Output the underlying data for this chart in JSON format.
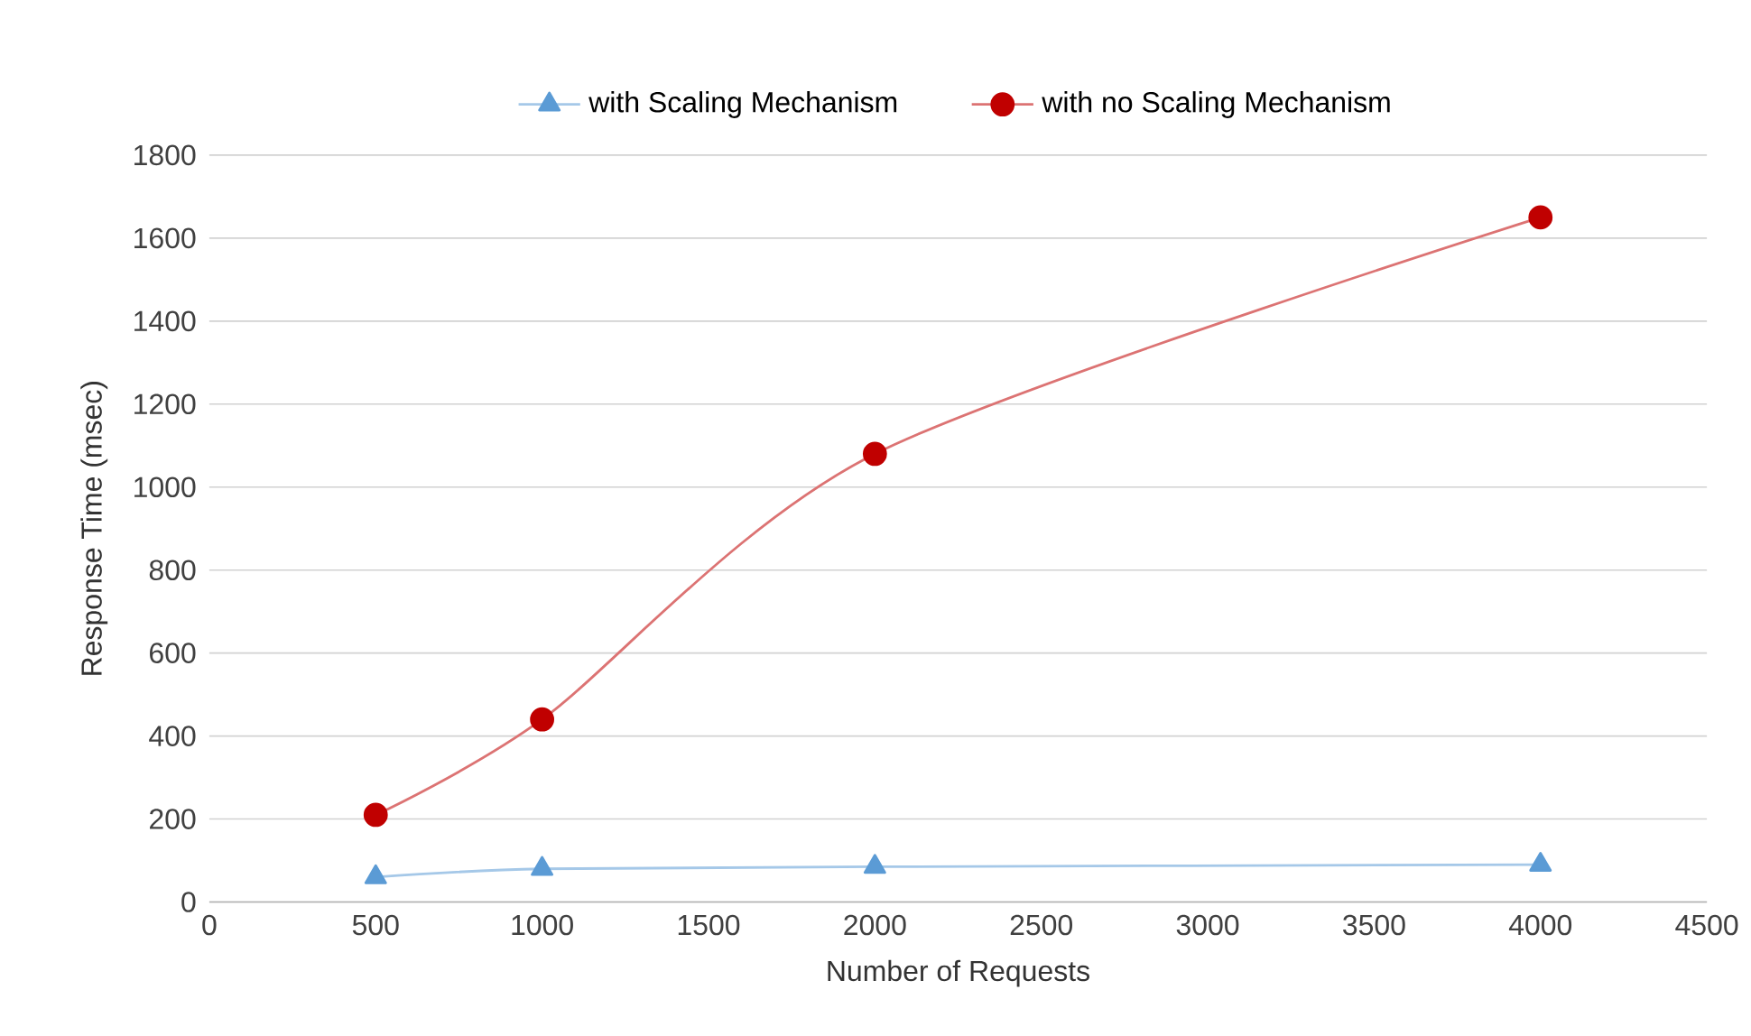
{
  "chart_data": {
    "type": "line",
    "xlabel": "Number  of Requests",
    "ylabel": "Response Time (msec)",
    "x": [
      500,
      1000,
      2000,
      4000
    ],
    "series": [
      {
        "name": "with Scaling Mechanism",
        "color": "#5b9bd5",
        "marker": "triangle",
        "values": [
          60,
          80,
          85,
          90
        ]
      },
      {
        "name": "with no Scaling Mechanism",
        "color": "#c00000",
        "marker": "circle",
        "values": [
          210,
          440,
          1080,
          1650
        ]
      }
    ],
    "xlim": [
      0,
      4500
    ],
    "xticks": [
      0,
      500,
      1000,
      1500,
      2000,
      2500,
      3000,
      3500,
      4000,
      4500
    ],
    "ylim": [
      0,
      1800
    ],
    "yticks": [
      0,
      200,
      400,
      600,
      800,
      1000,
      1200,
      1400,
      1600,
      1800
    ],
    "grid": "y",
    "legend": "top",
    "line_style": "solid"
  }
}
